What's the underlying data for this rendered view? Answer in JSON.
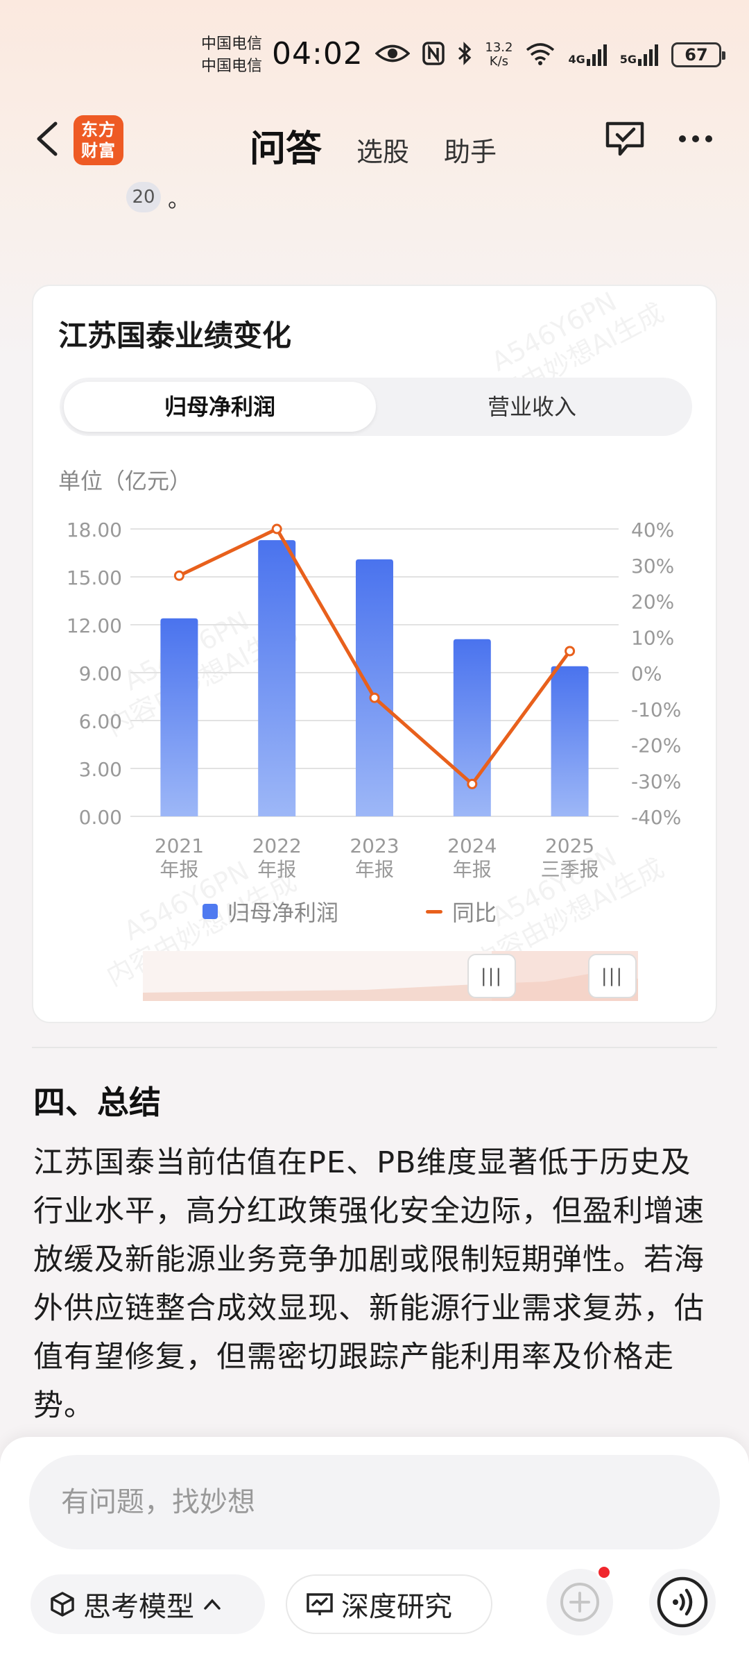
{
  "status_bar": {
    "carrier_1": "中国电信",
    "carrier_2": "中国电信",
    "time": "04:02",
    "net_speed_value": "13.2",
    "net_speed_unit": "K/s",
    "signal_1": "4G",
    "signal_2": "5G",
    "battery": "67"
  },
  "header": {
    "logo_line1": "东方",
    "logo_line2": "财富",
    "tabs": [
      "问答",
      "选股",
      "助手"
    ]
  },
  "content": {
    "reference_badge": "20",
    "reference_tail": "。",
    "card": {
      "title": "江苏国泰业绩变化",
      "seg_active": "归母净利润",
      "seg_inactive": "营业收入",
      "unit_label": "单位（亿元）",
      "legend_bar": "归母净利润",
      "legend_line": "同比",
      "watermark_line1": "A546Y6PN",
      "watermark_line2": "内容由妙想AI生成"
    },
    "section_title": "四、总结",
    "paragraph": "江苏国泰当前估值在PE、PB维度显著低于历史及行业水平，高分红政策强化安全边际，但盈利增速放缓及新能源业务竞争加剧或限制短期弹性。若海外供应链整合成效显现、新能源行业需求复苏，估值有望修复，但需密切跟踪产能利用率及价格走势。"
  },
  "bottom_bar": {
    "input_placeholder": "有问题，找妙想",
    "think_model_label": "思考模型",
    "deep_research_label": "深度研究"
  },
  "colors": {
    "bar_top": "#4a73ee",
    "bar_bottom": "#9db7f7",
    "line": "#e8601c",
    "logo": "#ee5a24"
  },
  "chart_data": {
    "type": "bar",
    "categories": [
      "2021\n年报",
      "2022\n年报",
      "2023\n年报",
      "2024\n年报",
      "2025\n三季报"
    ],
    "series": [
      {
        "name": "归母净利润",
        "type": "bar",
        "axis": "left",
        "values": [
          12.4,
          17.3,
          16.1,
          11.1,
          9.4
        ]
      },
      {
        "name": "同比",
        "type": "line",
        "axis": "right",
        "values": [
          27,
          40,
          -7,
          -31,
          6
        ]
      }
    ],
    "y_left": {
      "ticks": [
        "18.00",
        "15.00",
        "12.00",
        "9.00",
        "6.00",
        "3.00",
        "0.00"
      ],
      "ylim": [
        0,
        18
      ]
    },
    "y_right": {
      "ticks": [
        "40%",
        "30%",
        "20%",
        "10%",
        "0%",
        "-10%",
        "-20%",
        "-30%",
        "-40%"
      ],
      "ylim": [
        -40,
        40
      ]
    },
    "ylabel": "单位（亿元）",
    "grid": true,
    "legend": "bottom"
  }
}
